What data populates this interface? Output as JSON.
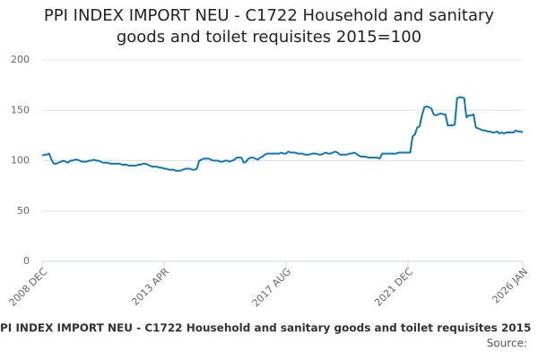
{
  "chart_data": {
    "type": "line",
    "title": "PPI INDEX IMPORT NEU - C1722 Household and sanitary goods and toilet requisites 2015=100",
    "caption": "PI INDEX IMPORT NEU - C1722 Household and sanitary goods and toilet requisites 2015",
    "source": "Source:",
    "categories": [
      "2008 DEC",
      null,
      null,
      null,
      null,
      null,
      null,
      null,
      null,
      null,
      null,
      null,
      null,
      null,
      null,
      null,
      null,
      null,
      null,
      null,
      null,
      null,
      null,
      null,
      null,
      null,
      null,
      null,
      null,
      null,
      null,
      null,
      null,
      null,
      null,
      null,
      null,
      null,
      null,
      null,
      null,
      null,
      null,
      null,
      null,
      null,
      null,
      null,
      null,
      null,
      null,
      null,
      "2013 APR",
      null,
      null,
      null,
      null,
      null,
      null,
      null,
      null,
      null,
      null,
      null,
      null,
      null,
      null,
      null,
      null,
      null,
      null,
      null,
      null,
      null,
      null,
      null,
      null,
      null,
      null,
      null,
      null,
      null,
      null,
      null,
      null,
      null,
      null,
      null,
      null,
      null,
      null,
      null,
      null,
      null,
      null,
      null,
      null,
      null,
      null,
      null,
      null,
      null,
      null,
      null,
      "2017 AUG",
      null,
      null,
      null,
      null,
      null,
      null,
      null,
      null,
      null,
      null,
      null,
      null,
      null,
      null,
      null,
      null,
      null,
      null,
      null,
      null,
      null,
      null,
      null,
      null,
      null,
      null,
      null,
      null,
      null,
      null,
      null,
      null,
      null,
      null,
      null,
      null,
      null,
      null,
      null,
      null,
      null,
      null,
      null,
      null,
      null,
      null,
      null,
      null,
      null,
      null,
      null,
      "2021 DEC",
      null,
      null,
      null,
      null,
      null,
      null,
      null,
      null,
      null,
      null,
      null,
      null,
      null,
      null,
      null,
      null,
      null,
      null,
      null,
      null,
      null,
      null,
      null,
      null,
      null,
      null,
      null,
      null,
      null,
      null,
      null,
      null,
      null,
      null,
      null,
      null,
      null,
      null,
      null,
      null,
      null,
      null,
      null,
      null,
      null,
      null,
      null,
      null,
      "2026 JAN"
    ],
    "series": [
      {
        "color": "#0f75b8",
        "values": [
          105,
          106,
          106,
          107,
          101,
          97,
          97,
          98,
          99,
          100,
          99,
          98,
          100,
          100,
          101,
          101,
          100,
          99,
          99,
          99,
          100,
          100,
          101,
          100,
          100,
          99,
          98,
          98,
          98,
          97,
          97,
          97,
          97,
          97,
          96,
          96,
          96,
          95,
          95,
          95,
          95,
          96,
          96,
          97,
          97,
          96,
          95,
          94,
          94,
          94,
          93,
          93,
          92,
          92,
          91,
          91,
          91,
          90,
          90,
          90,
          91,
          92,
          92,
          92,
          91,
          91,
          92,
          100,
          101,
          102,
          102,
          102,
          101,
          100,
          100,
          100,
          99,
          99,
          100,
          100,
          99,
          100,
          101,
          103,
          103,
          103,
          98,
          99,
          102,
          103,
          103,
          102,
          101,
          103,
          104,
          106,
          107,
          107,
          107,
          107,
          107,
          107,
          108,
          107,
          107,
          109,
          108,
          108,
          108,
          107,
          107,
          107,
          106,
          106,
          106,
          107,
          107,
          107,
          106,
          106,
          107,
          108,
          107,
          107,
          108,
          109,
          108,
          106,
          106,
          106,
          106,
          107,
          107,
          108,
          107,
          105,
          104,
          104,
          104,
          103,
          103,
          103,
          103,
          103,
          102,
          107,
          107,
          107,
          107,
          107,
          107,
          107,
          108,
          108,
          108,
          108,
          108,
          108,
          124,
          126,
          133,
          134,
          145,
          153,
          154,
          153,
          152,
          146,
          145,
          146,
          147,
          146,
          146,
          135,
          135,
          135,
          136,
          162,
          163,
          163,
          162,
          143,
          145,
          145,
          146,
          133,
          132,
          131,
          130,
          130,
          129,
          129,
          128,
          128,
          129,
          127,
          128,
          127,
          128,
          128,
          128,
          128,
          130,
          129,
          129,
          128
        ]
      }
    ],
    "ylim": [
      0,
      200
    ],
    "yticks": [
      0,
      50,
      100,
      150,
      200
    ],
    "grid": true
  }
}
